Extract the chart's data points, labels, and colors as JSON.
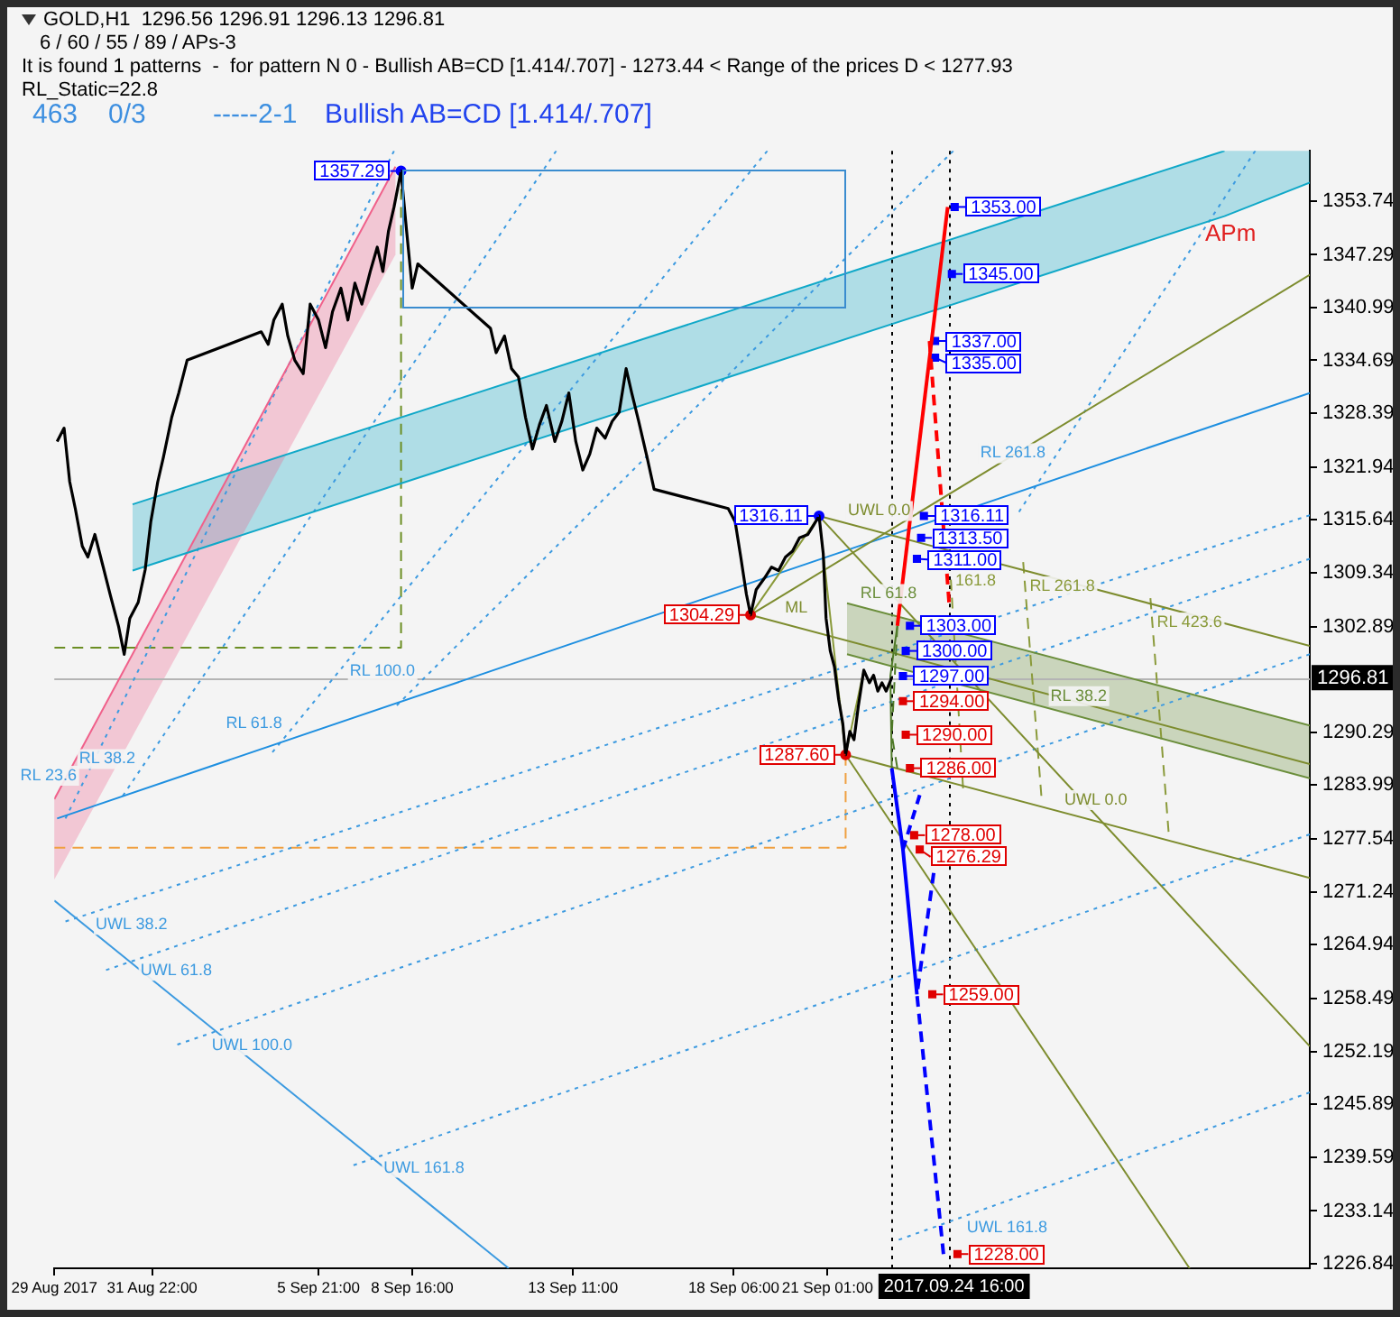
{
  "chart_data": {
    "type": "line",
    "title": "GOLD,H1  1296.56 1296.91 1296.13 1296.81",
    "annotations": [
      "6 / 60 / 55 / 89 / APs-3",
      "It is found 1 patterns  -  for pattern N 0 - Bullish AB=CD [1.414/.707] - 1273.44 < Range of the prices D < 1277.93",
      "RL_Static=22.8",
      "463",
      "0/3",
      "-----2-1",
      "Bullish AB=CD [1.414/.707]",
      "APm",
      {
        "text": "UWL 0.0",
        "x": "2017-09-21T13:00",
        "y": 1315.3
      },
      {
        "text": "ML",
        "x": "2017-09-19T16:00",
        "y": 1306.5
      },
      {
        "text": "RL 61.8",
        "x": "2017-09-21T22:00",
        "y": 1305.4
      },
      {
        "text": "RL 38.2",
        "x": "2017-09-27T14:00",
        "y": 1293.2
      },
      {
        "text": "UWL 0.0",
        "x": "2017-09-28T00:00",
        "y": 1280.8
      },
      {
        "text": "161.8",
        "x": "2017-09-24T17:47",
        "y": 1307.0
      },
      {
        "text": "RL 261.8",
        "x": "2017-09-26T23:00",
        "y": 1306.3
      },
      {
        "text": "RL 423.6",
        "x": "2017-09-30T18:00",
        "y": 1302.0
      },
      {
        "text": "RL 261.8",
        "x": "2017-09-27T16:00",
        "y": 1322.2
      },
      {
        "text": "RL 100.0",
        "x": "2017-09-08T21:00",
        "y": 1296.2
      },
      {
        "text": "RL 61.8",
        "x": "2017-09-04T22:00",
        "y": 1289.9
      },
      {
        "text": "RL 38.2",
        "x": "2017-08-31T13:00",
        "y": 1285.7
      },
      {
        "text": "RL 23.6",
        "x": "2017-08-29T19:00",
        "y": 1283.7
      },
      {
        "text": "UWL 38.2",
        "x": "2017-08-30T03:00",
        "y": 1268.7
      },
      {
        "text": "UWL 61.8",
        "x": "2017-08-31T11:00",
        "y": 1263.2
      },
      {
        "text": "UWL 100.0",
        "x": "2017-09-02T14:00",
        "y": 1254.3
      },
      {
        "text": "UWL 161.8",
        "x": "2017-09-07T17:00",
        "y": 1239.7
      },
      {
        "text": "UWL 161.8",
        "x": "2017-09-25T02:00",
        "y": 1232.5
      }
    ],
    "xlim": [
      "2017-08-29T00:00",
      "2017-10-05T10:00"
    ],
    "xticks": [
      {
        "value": "2017-08-29",
        "label": "29 Aug 2017"
      },
      {
        "value": "2017-08-31T22:00",
        "label": "31 Aug 22:00"
      },
      {
        "value": "2017-09-05T21:00",
        "label": "5 Sep 21:00"
      },
      {
        "value": "2017-09-08T16:00",
        "label": "8 Sep 16:00"
      },
      {
        "value": "2017-09-13T11:00",
        "label": "13 Sep 11:00"
      },
      {
        "value": "2017-09-18T06:00",
        "label": "18 Sep 06:00"
      },
      {
        "value": "2017-09-21T01:00",
        "label": "21 Sep 01:00"
      }
    ],
    "ylim": [
      1226.3,
      1359.7
    ],
    "yticks": [
      1226.84,
      1233.14,
      1239.59,
      1245.89,
      1252.19,
      1258.49,
      1264.94,
      1271.24,
      1277.54,
      1283.99,
      1290.29,
      1302.89,
      1309.34,
      1315.64,
      1321.94,
      1328.39,
      1334.69,
      1340.99,
      1347.29,
      1353.74
    ],
    "ref_lines": [
      {
        "axis": "x",
        "value": "2017-09-22T23:00",
        "color": "#000000",
        "line_style": "dotted"
      },
      {
        "axis": "x",
        "value": "2017-09-24T16:00",
        "label": "2017.09.24 16:00",
        "color": "#000000",
        "line_style": "dotted"
      },
      {
        "axis": "y",
        "value": 1296.81,
        "label": "1296.81",
        "color": "#b4b4b4"
      }
    ],
    "series": [
      {
        "color": "#000000",
        "x": [
          "2017-08-29T02:00",
          "2017-08-29T07:00",
          "2017-08-29T11:00",
          "2017-08-29T15:00",
          "2017-08-29T20:00",
          "2017-08-30T00:00",
          "2017-08-30T05:00",
          "2017-08-30T11:00",
          "2017-08-30T16:00",
          "2017-08-30T22:00",
          "2017-08-31T02:00",
          "2017-08-31T06:00",
          "2017-08-31T12:00",
          "2017-08-31T17:00",
          "2017-08-31T21:00",
          "2017-09-01T02:00",
          "2017-09-01T06:00",
          "2017-09-01T12:00",
          "2017-09-01T17:00",
          "2017-09-01T23:00",
          "2017-09-04T04:00",
          "2017-09-04T09:00",
          "2017-09-04T13:00",
          "2017-09-04T19:00",
          "2017-09-04T23:00",
          "2017-09-05T04:00",
          "2017-09-05T10:00",
          "2017-09-05T15:00",
          "2017-09-05T21:00",
          "2017-09-06T02:00",
          "2017-09-06T07:00",
          "2017-09-06T13:00",
          "2017-09-06T18:00",
          "2017-09-06T23:00",
          "2017-09-07T04:00",
          "2017-09-07T10:00",
          "2017-09-07T15:00",
          "2017-09-07T19:00",
          "2017-09-07T23:00",
          "2017-09-08T03:00",
          "2017-09-08T08:00",
          "2017-09-08T12:00",
          "2017-09-08T16:00",
          "2017-09-08T20:00",
          "2017-09-11T00:00",
          "2017-09-11T04:00",
          "2017-09-11T10:00",
          "2017-09-11T15:00",
          "2017-09-11T20:00",
          "2017-09-12T01:00",
          "2017-09-12T06:00",
          "2017-09-12T11:00",
          "2017-09-12T16:00",
          "2017-09-12T22:00",
          "2017-09-13T03:00",
          "2017-09-13T08:00",
          "2017-09-13T13:00",
          "2017-09-13T18:00",
          "2017-09-13T23:00",
          "2017-09-14T04:00",
          "2017-09-14T10:00",
          "2017-09-14T15:00",
          "2017-09-14T20:00",
          "2017-09-15T01:00",
          "2017-09-15T05:00",
          "2017-09-15T10:00",
          "2017-09-15T16:00",
          "2017-09-15T21:00",
          "2017-09-18T02:00",
          "2017-09-18T07:00",
          "2017-09-18T11:00",
          "2017-09-18T15:00",
          "2017-09-18T18:00",
          "2017-09-18T22:00",
          "2017-09-19T04:00",
          "2017-09-19T09:00",
          "2017-09-19T14:00",
          "2017-09-19T19:00",
          "2017-09-20T00:00",
          "2017-09-20T05:00",
          "2017-09-20T11:00",
          "2017-09-20T15:00",
          "2017-09-20T19:00",
          "2017-09-20T22:00",
          "2017-09-21T00:00",
          "2017-09-21T03:00",
          "2017-09-21T06:00",
          "2017-09-21T09:00",
          "2017-09-21T12:00",
          "2017-09-21T14:00",
          "2017-09-21T17:00",
          "2017-09-21T20:00",
          "2017-09-21T23:00",
          "2017-09-22T03:00",
          "2017-09-22T07:00",
          "2017-09-22T10:00",
          "2017-09-22T13:00",
          "2017-09-22T16:00",
          "2017-09-22T19:00",
          "2017-09-22T23:00"
        ],
        "values": [
          1325.0,
          1326.6,
          1320.2,
          1317.0,
          1312.5,
          1311.2,
          1313.9,
          1310.0,
          1306.7,
          1302.9,
          1299.6,
          1303.9,
          1305.8,
          1309.7,
          1315.4,
          1320.2,
          1323.1,
          1327.9,
          1330.8,
          1334.7,
          1338.1,
          1336.6,
          1339.5,
          1341.4,
          1337.6,
          1334.7,
          1333.1,
          1341.4,
          1339.5,
          1336.2,
          1340.5,
          1343.3,
          1339.5,
          1343.9,
          1341.4,
          1345.3,
          1348.2,
          1345.3,
          1350.1,
          1353.0,
          1357.29,
          1350.1,
          1343.3,
          1346.2,
          1338.5,
          1335.6,
          1337.6,
          1333.7,
          1332.7,
          1327.9,
          1324.1,
          1327.0,
          1329.3,
          1325.0,
          1327.4,
          1330.8,
          1325.0,
          1321.6,
          1323.5,
          1326.6,
          1325.4,
          1327.4,
          1328.5,
          1333.7,
          1330.8,
          1327.4,
          1323.1,
          1319.3,
          1317.0,
          1315.4,
          1311.2,
          1306.8,
          1304.29,
          1307.3,
          1308.7,
          1310.0,
          1309.6,
          1311.2,
          1311.9,
          1313.5,
          1313.9,
          1315.0,
          1316.11,
          1311.6,
          1303.9,
          1300.0,
          1298.1,
          1294.2,
          1291.3,
          1287.6,
          1290.4,
          1289.4,
          1293.3,
          1297.7,
          1296.2,
          1297.1,
          1295.2,
          1296.2,
          1295.2,
          1296.81
        ]
      },
      {
        "color": "#ff0000",
        "x": [
          "2017-09-23T03:00",
          "2017-09-24T15:00"
        ],
        "values": [
          1303,
          1353
        ]
      },
      {
        "color": "#ff0000",
        "line_style": "dashed",
        "x": [
          "2017-09-24T02:00",
          "2017-09-24T16:00"
        ],
        "values": [
          1337,
          1305.8
        ]
      },
      {
        "color": "#0000ff",
        "x": [
          "2017-09-22T23:00",
          "2017-09-23T07:00",
          "2017-09-23T17:00"
        ],
        "values": [
          1286,
          1276.29,
          1259
        ]
      },
      {
        "color": "#0000ff",
        "line_style": "dashed",
        "x": [
          "2017-09-23T07:00",
          "2017-09-23T19:00"
        ],
        "values": [
          1276.29,
          1282.8
        ]
      },
      {
        "color": "#0000ff",
        "line_style": "dashed",
        "x": [
          "2017-09-24T05:00",
          "2017-09-23T17:00",
          "2017-09-24T12:00"
        ],
        "values": [
          1273.5,
          1259,
          1228
        ]
      },
      {
        "color": "#4f7a28",
        "x": [
          "2017-09-23T03:00",
          "2017-09-22T22:00",
          "2017-09-22T23:00"
        ],
        "values": [
          1303,
          1297,
          1286
        ]
      },
      {
        "color": "#4f7a28",
        "line_style": "dashed",
        "x": [
          "2017-09-23T03:00",
          "2017-09-22T23:00",
          "2017-09-23T03:00"
        ],
        "values": [
          1303,
          1290,
          1286
        ]
      },
      {
        "type": "scatter",
        "marker": "square",
        "color": "#0000ff",
        "x": [
          "2017-09-24T20:00",
          "2017-09-24T18:00",
          "2017-09-24T06:00",
          "2017-09-24T06:00",
          "2017-09-23T22:00",
          "2017-09-23T20:00",
          "2017-09-23T17:00",
          "2017-09-23T12:00",
          "2017-09-23T09:00",
          "2017-09-23T07:00"
        ],
        "values": [
          1353,
          1345,
          1337,
          1335,
          1316.11,
          1313.5,
          1311,
          1303,
          1300,
          1297
        ],
        "value_labels": [
          "1353.00",
          "1345.00",
          "1337.00",
          "1335.00",
          "1316.11",
          "1313.50",
          "1311.00",
          "1303.00",
          "1300.00",
          "1297.00"
        ]
      },
      {
        "type": "scatter",
        "marker": "square",
        "color": "#e00000",
        "x": [
          "2017-09-23T07:00",
          "2017-09-23T09:00",
          "2017-09-23T12:00",
          "2017-09-23T15:00",
          "2017-09-23T19:00",
          "2017-09-24T04:00",
          "2017-09-24T22:00"
        ],
        "values": [
          1294,
          1290,
          1286,
          1278,
          1276.29,
          1259,
          1228
        ],
        "value_labels": [
          "1294.00",
          "1290.00",
          "1286.00",
          "1278.00",
          "1276.29",
          "1259.00",
          "1228.00"
        ]
      },
      {
        "type": "scatter",
        "marker": "circle",
        "color": "#0000ff",
        "x": [
          "2017-09-08T08:00",
          "2017-09-20T19:00"
        ],
        "values": [
          1357.29,
          1316.11
        ],
        "value_labels": [
          "1357.29",
          "1316.11"
        ]
      },
      {
        "type": "scatter",
        "marker": "circle",
        "color": "#e00000",
        "x": [
          "2017-09-18T18:00",
          "2017-09-21T14:00"
        ],
        "values": [
          1304.29,
          1287.6
        ],
        "value_labels": [
          "1304.29",
          "1287.60"
        ]
      },
      {
        "color": "#8a9a3a",
        "x": [
          "2017-09-18T18:00",
          "2017-09-20T19:00",
          "2017-09-21T14:00",
          "2017-09-22T03:00"
        ],
        "values": [
          1304.3,
          1316.1,
          1287.6,
          1297.7
        ]
      },
      {
        "color": "#7d8c2e",
        "x": [
          "2017-09-18T18:00",
          "2017-10-05T10:00"
        ],
        "values": [
          1304.3,
          1286.5
        ]
      },
      {
        "color": "#7d8c2e",
        "x": [
          "2017-09-18T18:00",
          "2017-10-05T10:00"
        ],
        "values": [
          1304.3,
          1344.9
        ]
      },
      {
        "color": "#7d8c2e",
        "x": [
          "2017-09-20T19:00",
          "2017-10-05T10:00"
        ],
        "values": [
          1316.1,
          1300.6
        ]
      },
      {
        "color": "#7d8c2e",
        "x": [
          "2017-09-21T14:00",
          "2017-10-05T10:00"
        ],
        "values": [
          1287.6,
          1272.9
        ]
      },
      {
        "color": "#6b8e3b",
        "x": [
          "2017-09-21T15:00",
          "2017-10-05T10:00"
        ],
        "values": [
          1305.7,
          1291.1
        ]
      },
      {
        "color": "#6b8e3b",
        "x": [
          "2017-09-21T15:00",
          "2017-10-05T10:00"
        ],
        "values": [
          1299.6,
          1284.8
        ],
        "lower": [
          1299.6,
          1284.8
        ],
        "upper": [
          1305.7,
          1291.1
        ]
      },
      {
        "color": "#7d8c2e",
        "x": [
          "2017-09-21T14:00",
          "2017-10-01T20:00"
        ],
        "values": [
          1287.6,
          1226.3
        ]
      },
      {
        "color": "#7d8c2e",
        "x": [
          "2017-09-20T19:00",
          "2017-10-05T10:00"
        ],
        "values": [
          1316.1,
          1252.8
        ]
      },
      {
        "color": "#8a9a3a",
        "line_style": "dashed",
        "x": [
          "2017-09-24T17:16",
          "2017-09-25T02:00"
        ],
        "values": [
          1308.5,
          1283.6
        ]
      },
      {
        "color": "#8a9a3a",
        "line_style": "dashed",
        "x": [
          "2017-09-26T21:00",
          "2017-09-27T10:00"
        ],
        "values": [
          1310.6,
          1282.7
        ]
      },
      {
        "color": "#8a9a3a",
        "line_style": "dashed",
        "x": [
          "2017-09-30T16:00",
          "2017-10-01T05:00"
        ],
        "values": [
          1306.3,
          1278.4
        ]
      },
      {
        "color": "#1e8fe0",
        "x": [
          "2017-08-29T02:00",
          "2017-10-05T10:00"
        ],
        "values": [
          1280.0,
          1330.8
        ]
      },
      {
        "color": "#10a8c8",
        "x": [
          "2017-08-31T08:00",
          "2017-10-02T21:00"
        ],
        "values": [
          1317.5,
          1359.7
        ]
      },
      {
        "color": "#10a8c8",
        "x": [
          "2017-08-31T08:00",
          "2017-10-02T21:00",
          "2017-10-05T10:00"
        ],
        "values": [
          1309.6,
          1351.9,
          1355.9
        ],
        "lower": [
          1309.6,
          1351.9,
          1355.9
        ],
        "upper": [
          1317.5,
          1359.7,
          1359.7
        ]
      },
      {
        "color": "#f0608a",
        "x": [
          "2017-08-29T00:00",
          "2017-09-08T04:00"
        ],
        "values": [
          1282.3,
          1357.8
        ],
        "lower": [
          1272.7,
          1347.3
        ],
        "upper": [
          1282.3,
          1357.8
        ]
      },
      {
        "color": "#3c9ae0",
        "line_style": "dotted",
        "x": [
          "2017-08-29T08:00",
          "2017-10-05T10:00"
        ],
        "values": [
          1267.7,
          1316.2
        ]
      },
      {
        "color": "#3c9ae0",
        "line_style": "dotted",
        "x": [
          "2017-08-30T13:00",
          "2017-10-05T10:00"
        ],
        "values": [
          1261.9,
          1311.0
        ]
      },
      {
        "color": "#3c9ae0",
        "line_style": "dotted",
        "x": [
          "2017-09-01T16:00",
          "2017-10-05T10:00"
        ],
        "values": [
          1253.0,
          1299.6
        ]
      },
      {
        "color": "#3c9ae0",
        "line_style": "dotted",
        "x": [
          "2017-09-06T22:00",
          "2017-10-05T10:00"
        ],
        "values": [
          1238.6,
          1278.1
        ]
      },
      {
        "color": "#3c9ae0",
        "line_style": "dotted",
        "x": [
          "2017-09-23T04:00",
          "2017-10-05T10:00"
        ],
        "values": [
          1229.7,
          1247.3
        ]
      },
      {
        "color": "#3c9ae0",
        "x": [
          "2017-08-29T00:00",
          "2017-09-11T13:00"
        ],
        "values": [
          1270.2,
          1226.3
        ]
      },
      {
        "color": "#3c9ae0",
        "line_style": "dotted",
        "x": [
          "2017-08-29T08:00",
          "2017-09-08T03:00"
        ],
        "values": [
          1280.0,
          1359.7
        ]
      },
      {
        "color": "#3c9ae0",
        "line_style": "dotted",
        "x": [
          "2017-08-31T01:00",
          "2017-09-12T23:00"
        ],
        "values": [
          1282.7,
          1359.7
        ]
      },
      {
        "color": "#3c9ae0",
        "line_style": "dotted",
        "x": [
          "2017-09-04T12:00",
          "2017-09-19T06:00"
        ],
        "values": [
          1287.9,
          1359.7
        ]
      },
      {
        "color": "#3c9ae0",
        "line_style": "dotted",
        "x": [
          "2017-09-08T05:00",
          "2017-09-24T19:00"
        ],
        "values": [
          1293.5,
          1359.7
        ]
      },
      {
        "color": "#3c9ae0",
        "line_style": "dotted",
        "x": [
          "2017-09-26T18:00",
          "2017-10-03T19:00"
        ],
        "values": [
          1316.6,
          1359.7
        ]
      },
      {
        "color": "#6b8e23",
        "line_style": "dashed",
        "x": [
          "2017-08-29T00:00",
          "2017-09-08T08:00",
          "2017-09-08T08:00"
        ],
        "values": [
          1300.4,
          1300.4,
          1357.29
        ]
      },
      {
        "color": "#f0a040",
        "line_style": "dashed",
        "x": [
          "2017-08-29T00:00",
          "2017-09-21T14:00",
          "2017-09-21T14:00"
        ],
        "values": [
          1276.5,
          1276.5,
          1287.6
        ]
      }
    ]
  }
}
